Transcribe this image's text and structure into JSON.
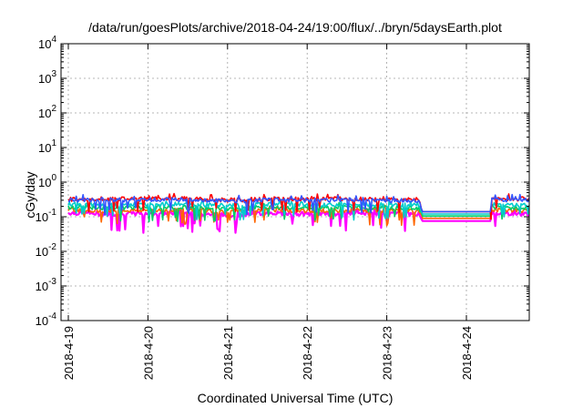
{
  "chart_data": {
    "type": "line",
    "title": "/data/run/goesPlots/archive/2018-04-24/19:00/flux/../bryn/5daysEarth.plot",
    "xlabel": "Coordinated Universal Time (UTC)",
    "ylabel": "cGy/day",
    "yscale": "log",
    "ylim_exp": [
      -4,
      4
    ],
    "y_ticks": [
      {
        "base": "10",
        "exp": "-4"
      },
      {
        "base": "10",
        "exp": "-3"
      },
      {
        "base": "10",
        "exp": "-2"
      },
      {
        "base": "10",
        "exp": "-1"
      },
      {
        "base": "10",
        "exp": "0"
      },
      {
        "base": "10",
        "exp": "1"
      },
      {
        "base": "10",
        "exp": "2"
      },
      {
        "base": "10",
        "exp": "3"
      },
      {
        "base": "10",
        "exp": "4"
      }
    ],
    "x_tick_labels": [
      "2018-4-19",
      "2018-4-20",
      "2018-4-21",
      "2018-4-22",
      "2018-4-23",
      "2018-4-24"
    ],
    "xlim_days": [
      0,
      5.8
    ],
    "grid": true,
    "legend": "none",
    "series": [
      {
        "color": "#ff00ff",
        "values": [
          [
            0,
            0.13
          ],
          [
            0.5,
            0.12
          ],
          [
            1,
            0.125
          ],
          [
            1.5,
            0.13
          ],
          [
            2,
            0.11
          ],
          [
            2.5,
            0.13
          ],
          [
            3,
            0.12
          ],
          [
            3.5,
            0.125
          ],
          [
            4,
            0.12
          ],
          [
            4.4,
            0.12
          ],
          [
            4.45,
            0.075
          ],
          [
            5.3,
            0.075
          ],
          [
            5.32,
            0.13
          ],
          [
            5.8,
            0.12
          ]
        ]
      },
      {
        "color": "#ff6600",
        "values": [
          [
            0,
            0.16
          ],
          [
            0.5,
            0.15
          ],
          [
            1,
            0.155
          ],
          [
            1.5,
            0.16
          ],
          [
            2,
            0.14
          ],
          [
            2.5,
            0.16
          ],
          [
            3,
            0.15
          ],
          [
            3.5,
            0.155
          ],
          [
            4,
            0.15
          ],
          [
            4.4,
            0.15
          ],
          [
            4.45,
            0.09
          ],
          [
            5.3,
            0.09
          ],
          [
            5.32,
            0.16
          ],
          [
            5.8,
            0.15
          ]
        ]
      },
      {
        "color": "#00cc66",
        "values": [
          [
            0,
            0.19
          ],
          [
            0.5,
            0.18
          ],
          [
            1,
            0.185
          ],
          [
            1.5,
            0.19
          ],
          [
            2,
            0.17
          ],
          [
            2.5,
            0.19
          ],
          [
            3,
            0.18
          ],
          [
            3.5,
            0.185
          ],
          [
            4,
            0.18
          ],
          [
            4.4,
            0.18
          ],
          [
            4.45,
            0.105
          ],
          [
            5.3,
            0.105
          ],
          [
            5.32,
            0.19
          ],
          [
            5.8,
            0.18
          ]
        ]
      },
      {
        "color": "#00cccc",
        "values": [
          [
            0,
            0.23
          ],
          [
            0.5,
            0.22
          ],
          [
            1,
            0.225
          ],
          [
            1.5,
            0.23
          ],
          [
            2,
            0.21
          ],
          [
            2.5,
            0.23
          ],
          [
            3,
            0.22
          ],
          [
            3.5,
            0.225
          ],
          [
            4,
            0.22
          ],
          [
            4.4,
            0.22
          ],
          [
            4.45,
            0.12
          ],
          [
            5.3,
            0.12
          ],
          [
            5.32,
            0.23
          ],
          [
            5.8,
            0.22
          ]
        ]
      },
      {
        "color": "#ff0000",
        "values": [
          [
            0,
            0.32
          ],
          [
            0.5,
            0.33
          ],
          [
            1,
            0.33
          ],
          [
            1.5,
            0.34
          ],
          [
            2,
            0.3
          ],
          [
            2.5,
            0.33
          ],
          [
            3,
            0.32
          ],
          [
            3.5,
            0.33
          ],
          [
            4,
            0.31
          ],
          [
            4.4,
            0.32
          ],
          [
            4.45,
            0.14
          ],
          [
            5.3,
            0.14
          ],
          [
            5.32,
            0.33
          ],
          [
            5.8,
            0.32
          ]
        ]
      },
      {
        "color": "#3355ff",
        "values": [
          [
            0,
            0.3
          ],
          [
            0.5,
            0.31
          ],
          [
            1,
            0.31
          ],
          [
            1.5,
            0.32
          ],
          [
            2,
            0.28
          ],
          [
            2.5,
            0.31
          ],
          [
            3,
            0.3
          ],
          [
            3.5,
            0.31
          ],
          [
            4,
            0.29
          ],
          [
            4.4,
            0.3
          ],
          [
            4.45,
            0.14
          ],
          [
            5.3,
            0.14
          ],
          [
            5.32,
            0.31
          ],
          [
            5.8,
            0.3
          ]
        ]
      }
    ]
  }
}
